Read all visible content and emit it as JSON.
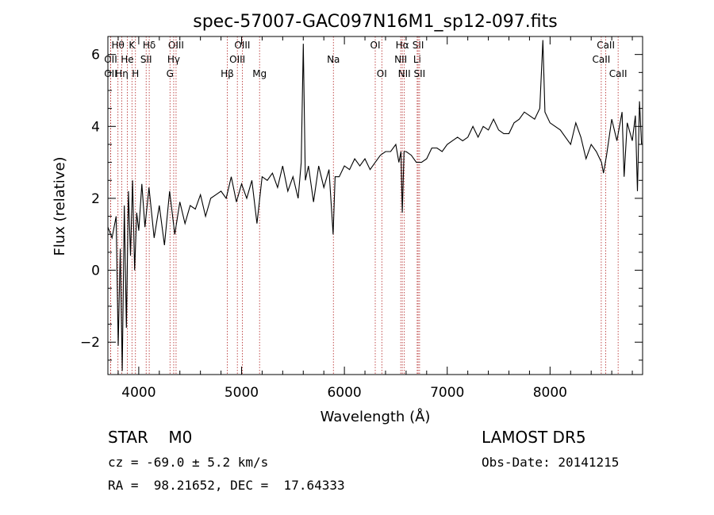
{
  "chart_data": {
    "type": "line",
    "title": "spec-57007-GAC097N16M1_sp12-097.fits",
    "xlabel": "Wavelength (Å)",
    "ylabel": "Flux (relative)",
    "xlim": [
      3700,
      8900
    ],
    "ylim": [
      -2.9,
      6.5
    ],
    "x_ticks": [
      4000,
      5000,
      6000,
      7000,
      8000
    ],
    "y_ticks": [
      -2,
      0,
      2,
      4,
      6
    ],
    "grid": false,
    "line_color": "#000000",
    "marker_color": "#b22222",
    "series": [
      {
        "x": [
          3700,
          3740,
          3780,
          3800,
          3820,
          3840,
          3860,
          3880,
          3900,
          3920,
          3940,
          3960,
          3980,
          4000,
          4030,
          4060,
          4100,
          4150,
          4200,
          4250,
          4300,
          4350,
          4400,
          4450,
          4500,
          4550,
          4600,
          4650,
          4700,
          4750,
          4800,
          4850,
          4900,
          4950,
          5000,
          5050,
          5100,
          5150,
          5200,
          5250,
          5300,
          5350,
          5400,
          5450,
          5500,
          5550,
          5580,
          5600,
          5620,
          5650,
          5700,
          5750,
          5800,
          5850,
          5890,
          5910,
          5950,
          6000,
          6050,
          6100,
          6150,
          6200,
          6250,
          6300,
          6350,
          6400,
          6450,
          6500,
          6530,
          6550,
          6563,
          6580,
          6600,
          6650,
          6700,
          6750,
          6800,
          6850,
          6900,
          6950,
          7000,
          7050,
          7100,
          7150,
          7200,
          7250,
          7300,
          7350,
          7400,
          7450,
          7500,
          7550,
          7600,
          7650,
          7700,
          7750,
          7800,
          7850,
          7900,
          7930,
          7950,
          8000,
          8050,
          8100,
          8150,
          8200,
          8250,
          8300,
          8350,
          8400,
          8450,
          8500,
          8520,
          8550,
          8600,
          8650,
          8700,
          8720,
          8750,
          8800,
          8830,
          8850,
          8870,
          8890
        ],
        "y": [
          1.2,
          0.9,
          1.5,
          -2.1,
          0.6,
          -2.8,
          1.8,
          -1.6,
          2.2,
          0.4,
          2.5,
          0.0,
          1.6,
          1.1,
          2.4,
          1.2,
          2.3,
          0.9,
          1.8,
          0.7,
          2.2,
          1.0,
          1.9,
          1.3,
          1.8,
          1.7,
          2.1,
          1.5,
          2.0,
          2.1,
          2.2,
          2.0,
          2.6,
          1.9,
          2.4,
          2.0,
          2.5,
          1.3,
          2.6,
          2.5,
          2.7,
          2.3,
          2.9,
          2.2,
          2.6,
          2.0,
          3.0,
          6.3,
          2.5,
          2.9,
          1.9,
          2.9,
          2.3,
          2.8,
          1.0,
          2.6,
          2.6,
          2.9,
          2.8,
          3.1,
          2.9,
          3.1,
          2.8,
          3.0,
          3.2,
          3.3,
          3.3,
          3.5,
          3.0,
          3.3,
          1.6,
          3.3,
          3.3,
          3.2,
          3.0,
          3.0,
          3.1,
          3.4,
          3.4,
          3.3,
          3.5,
          3.6,
          3.7,
          3.6,
          3.7,
          4.0,
          3.7,
          4.0,
          3.9,
          4.2,
          3.9,
          3.8,
          3.8,
          4.1,
          4.2,
          4.4,
          4.3,
          4.2,
          4.5,
          6.4,
          4.4,
          4.1,
          4.0,
          3.9,
          3.7,
          3.5,
          4.1,
          3.7,
          3.1,
          3.5,
          3.3,
          3.0,
          2.7,
          3.2,
          4.2,
          3.6,
          4.4,
          2.6,
          4.1,
          3.6,
          4.3,
          2.2,
          4.7,
          3.5
        ]
      }
    ],
    "line_labels": [
      {
        "name": "Hθ",
        "x": 3798,
        "row": 0
      },
      {
        "name": "K",
        "x": 3934,
        "row": 0
      },
      {
        "name": "Hδ",
        "x": 4102,
        "row": 0
      },
      {
        "name": "OIII",
        "x": 4363,
        "row": 0
      },
      {
        "name": "OIII",
        "x": 5007,
        "row": 0
      },
      {
        "name": "OI",
        "x": 6300,
        "row": 0
      },
      {
        "name": "Hα",
        "x": 6563,
        "row": 0
      },
      {
        "name": "SII",
        "x": 6717,
        "row": 0
      },
      {
        "name": "CaII",
        "x": 8542,
        "row": 0
      },
      {
        "name": "OII",
        "x": 3727,
        "row": 1
      },
      {
        "name": "He",
        "x": 3889,
        "row": 1
      },
      {
        "name": "SII",
        "x": 4072,
        "row": 1
      },
      {
        "name": "Hγ",
        "x": 4340,
        "row": 1
      },
      {
        "name": "OIII",
        "x": 4959,
        "row": 1
      },
      {
        "name": "Na",
        "x": 5893,
        "row": 1
      },
      {
        "name": "NII",
        "x": 6548,
        "row": 1
      },
      {
        "name": "Li",
        "x": 6708,
        "row": 1
      },
      {
        "name": "CaII",
        "x": 8498,
        "row": 1
      },
      {
        "name": "OII",
        "x": 3727,
        "row": 2
      },
      {
        "name": "Hη",
        "x": 3835,
        "row": 2
      },
      {
        "name": "H",
        "x": 3968,
        "row": 2
      },
      {
        "name": "G",
        "x": 4304,
        "row": 2
      },
      {
        "name": "Hβ",
        "x": 4861,
        "row": 2
      },
      {
        "name": "Mg",
        "x": 5175,
        "row": 2
      },
      {
        "name": "OI",
        "x": 6364,
        "row": 2
      },
      {
        "name": "NII",
        "x": 6583,
        "row": 2
      },
      {
        "name": "SII",
        "x": 6731,
        "row": 2
      },
      {
        "name": "CaII",
        "x": 8662,
        "row": 2
      }
    ]
  },
  "info": {
    "class": "STAR    M0",
    "survey": "LAMOST DR5",
    "cz": "cz = -69.0 ± 5.2 km/s",
    "obs_date": "Obs-Date: 20141215",
    "coords": "RA =  98.21652, DEC =  17.64333"
  }
}
